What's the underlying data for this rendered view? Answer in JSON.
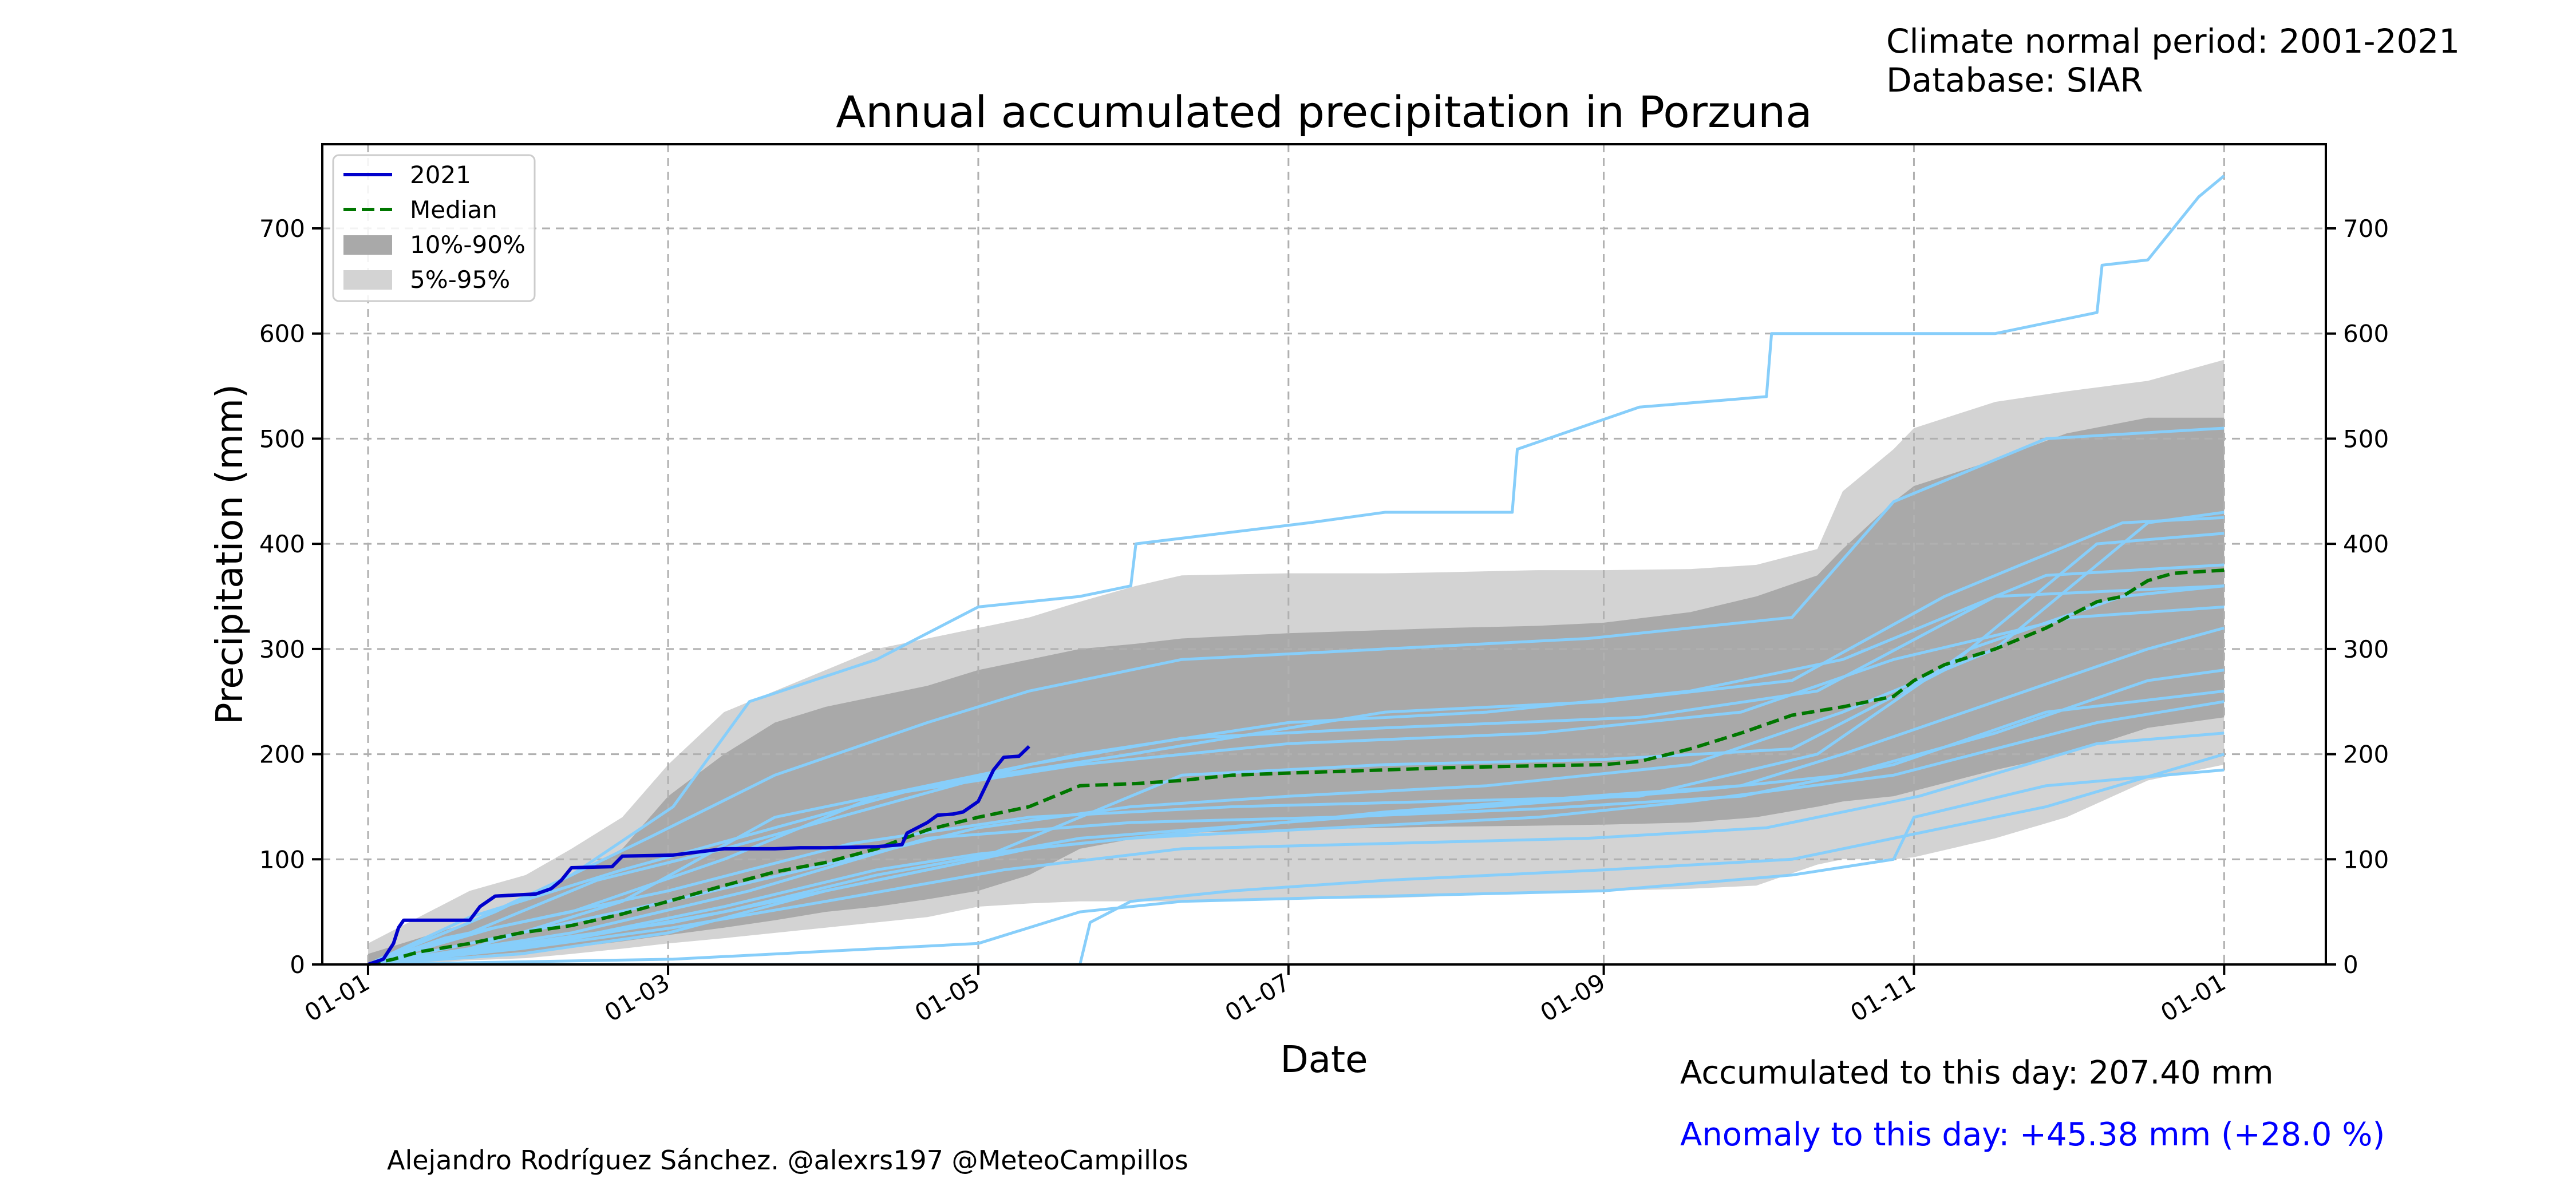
{
  "header": {
    "climate_period": "Climate normal period: 2001-2021",
    "database": "Database: SIAR"
  },
  "footer": {
    "accumulated": "Accumulated to this day: 207.40 mm",
    "anomaly": "Anomaly to this day: +45.38 mm (+28.0 %)",
    "anomaly_color": "#0000ff",
    "credit": "Alejandro Rodríguez Sánchez. @alexrs197 @MeteoCampillos"
  },
  "chart_data": {
    "type": "line",
    "title": "Annual accumulated precipitation in Porzuna",
    "xlabel": "Date",
    "ylabel": "Precipitation (mm)",
    "x_axis": "day of year",
    "xlim": [
      -9,
      385
    ],
    "ylim": [
      0,
      780
    ],
    "xticks": [
      {
        "day": 0,
        "label": "01-01"
      },
      {
        "day": 59,
        "label": "01-03"
      },
      {
        "day": 120,
        "label": "01-05"
      },
      {
        "day": 181,
        "label": "01-07"
      },
      {
        "day": 243,
        "label": "01-09"
      },
      {
        "day": 304,
        "label": "01-11"
      },
      {
        "day": 365,
        "label": "01-01"
      }
    ],
    "yticks": [
      0,
      100,
      200,
      300,
      400,
      500,
      600,
      700
    ],
    "grid": true,
    "legend_position": "top-left",
    "legend": [
      {
        "label": "2021",
        "kind": "line",
        "color": "#0000cc",
        "dash": "solid"
      },
      {
        "label": "Median",
        "kind": "line",
        "color": "#007700",
        "dash": "dashed"
      },
      {
        "label": "10%-90%",
        "kind": "patch",
        "color": "#a9a9a9"
      },
      {
        "label": "5%-95%",
        "kind": "patch",
        "color": "#d3d3d3"
      }
    ],
    "colors": {
      "year_line": "#0000cc",
      "median": "#007700",
      "band_10_90": "#a9a9a9",
      "band_5_95": "#d3d3d3",
      "past_years": "#87cefa"
    },
    "band_5_95": {
      "x": [
        0,
        10,
        20,
        31,
        40,
        50,
        59,
        70,
        80,
        90,
        100,
        110,
        120,
        130,
        140,
        151,
        160,
        181,
        200,
        212,
        230,
        243,
        260,
        273,
        285,
        290,
        300,
        304,
        320,
        334,
        350,
        365
      ],
      "lower": [
        0,
        1,
        4,
        6,
        10,
        15,
        20,
        25,
        30,
        35,
        40,
        45,
        55,
        58,
        60,
        60,
        60,
        62,
        63,
        65,
        68,
        70,
        72,
        75,
        95,
        100,
        100,
        102,
        120,
        140,
        175,
        190
      ],
      "upper": [
        20,
        45,
        70,
        85,
        110,
        140,
        190,
        240,
        260,
        280,
        300,
        310,
        320,
        330,
        345,
        360,
        370,
        372,
        372,
        373,
        375,
        375,
        376,
        380,
        395,
        450,
        490,
        510,
        535,
        545,
        555,
        575
      ]
    },
    "band_10_90": {
      "x": [
        0,
        10,
        20,
        31,
        40,
        50,
        59,
        70,
        80,
        90,
        100,
        110,
        120,
        130,
        140,
        151,
        160,
        181,
        200,
        212,
        230,
        243,
        260,
        273,
        285,
        290,
        300,
        304,
        320,
        334,
        350,
        365
      ],
      "lower": [
        0,
        3,
        8,
        12,
        16,
        22,
        28,
        35,
        42,
        50,
        55,
        62,
        70,
        85,
        110,
        120,
        125,
        128,
        130,
        131,
        132,
        133,
        135,
        140,
        150,
        155,
        160,
        165,
        185,
        200,
        225,
        235
      ],
      "upper": [
        10,
        25,
        40,
        65,
        85,
        110,
        160,
        200,
        230,
        245,
        255,
        265,
        280,
        290,
        300,
        305,
        310,
        315,
        318,
        320,
        322,
        325,
        335,
        350,
        370,
        395,
        440,
        455,
        480,
        505,
        520,
        520
      ]
    },
    "series": [
      {
        "name": "2021",
        "x": [
          0,
          3,
          5,
          6,
          7,
          20,
          22,
          25,
          33,
          36,
          38,
          40,
          48,
          50,
          60,
          70,
          80,
          85,
          90,
          100,
          105,
          106,
          110,
          112,
          115,
          117,
          120,
          123,
          125,
          128,
          130
        ],
        "y": [
          0,
          5,
          20,
          35,
          42,
          42,
          55,
          65,
          67,
          72,
          80,
          92,
          93,
          103,
          104,
          110,
          110,
          111,
          111,
          112,
          114,
          125,
          135,
          142,
          143,
          145,
          155,
          185,
          197,
          198,
          207.4
        ]
      },
      {
        "name": "Median",
        "x": [
          0,
          5,
          10,
          20,
          30,
          40,
          50,
          59,
          70,
          80,
          90,
          100,
          110,
          120,
          130,
          140,
          151,
          160,
          170,
          181,
          200,
          212,
          230,
          243,
          250,
          260,
          270,
          280,
          290,
          300,
          304,
          310,
          320,
          330,
          340,
          345,
          350,
          355,
          365
        ],
        "y": [
          0,
          5,
          12,
          20,
          30,
          37,
          48,
          60,
          75,
          88,
          97,
          110,
          128,
          140,
          150,
          170,
          172,
          175,
          180,
          182,
          185,
          187,
          189,
          190,
          193,
          205,
          220,
          237,
          245,
          255,
          270,
          285,
          300,
          320,
          345,
          350,
          365,
          372,
          375
        ]
      }
    ],
    "past_years": [
      {
        "x": [
          0,
          20,
          40,
          60,
          75,
          100,
          120,
          140,
          150,
          151,
          185,
          200,
          225,
          226,
          250,
          275,
          276,
          320,
          340,
          341,
          350,
          360,
          365
        ],
        "y": [
          0,
          40,
          85,
          150,
          250,
          290,
          340,
          350,
          360,
          400,
          420,
          430,
          430,
          490,
          530,
          540,
          600,
          600,
          620,
          665,
          670,
          730,
          750
        ]
      },
      {
        "x": [
          0,
          60,
          120,
          140,
          160,
          200,
          243,
          280,
          300,
          304,
          330,
          365
        ],
        "y": [
          0,
          5,
          20,
          50,
          60,
          65,
          70,
          85,
          100,
          140,
          170,
          185
        ]
      },
      {
        "x": [
          0,
          140,
          142,
          150,
          170,
          200,
          243,
          280,
          300,
          330,
          365
        ],
        "y": [
          0,
          0,
          40,
          60,
          70,
          80,
          90,
          100,
          120,
          150,
          200
        ]
      },
      {
        "x": [
          0,
          30,
          59,
          90,
          120,
          150,
          181,
          220,
          260,
          290,
          320,
          350,
          365
        ],
        "y": [
          0,
          30,
          60,
          95,
          130,
          150,
          160,
          170,
          190,
          240,
          300,
          420,
          430
        ]
      },
      {
        "x": [
          0,
          25,
          55,
          80,
          110,
          130,
          160,
          200,
          240,
          280,
          300,
          330,
          365
        ],
        "y": [
          0,
          50,
          120,
          180,
          230,
          260,
          290,
          300,
          310,
          330,
          440,
          500,
          510
        ]
      },
      {
        "x": [
          0,
          30,
          60,
          100,
          130,
          170,
          200,
          240,
          270,
          290,
          320,
          350,
          365
        ],
        "y": [
          0,
          20,
          40,
          80,
          110,
          130,
          145,
          160,
          170,
          200,
          250,
          300,
          320
        ]
      },
      {
        "x": [
          0,
          20,
          50,
          80,
          110,
          140,
          181,
          220,
          260,
          290,
          330,
          365
        ],
        "y": [
          0,
          15,
          60,
          140,
          170,
          200,
          230,
          240,
          260,
          290,
          370,
          380
        ]
      },
      {
        "x": [
          0,
          40,
          70,
          100,
          120,
          150,
          190,
          230,
          260,
          300,
          340,
          365
        ],
        "y": [
          0,
          25,
          55,
          90,
          105,
          120,
          130,
          140,
          155,
          180,
          230,
          250
        ]
      },
      {
        "x": [
          0,
          30,
          59,
          90,
          120,
          160,
          200,
          243,
          280,
          310,
          340,
          365
        ],
        "y": [
          0,
          10,
          30,
          70,
          100,
          180,
          190,
          195,
          205,
          280,
          400,
          410
        ]
      },
      {
        "x": [
          0,
          20,
          45,
          70,
          100,
          130,
          160,
          200,
          250,
          285,
          320,
          365
        ],
        "y": [
          0,
          30,
          80,
          110,
          150,
          190,
          215,
          225,
          235,
          260,
          350,
          360
        ]
      },
      {
        "x": [
          0,
          35,
          70,
          100,
          140,
          180,
          220,
          260,
          290,
          320,
          350,
          365
        ],
        "y": [
          0,
          20,
          50,
          85,
          120,
          135,
          150,
          165,
          180,
          220,
          270,
          280
        ]
      },
      {
        "x": [
          0,
          25,
          59,
          95,
          130,
          170,
          210,
          250,
          285,
          315,
          345,
          365
        ],
        "y": [
          0,
          35,
          70,
          115,
          140,
          150,
          155,
          160,
          200,
          300,
          350,
          360
        ]
      },
      {
        "x": [
          0,
          15,
          40,
          70,
          100,
          140,
          181,
          230,
          270,
          300,
          335,
          365
        ],
        "y": [
          0,
          25,
          50,
          100,
          160,
          190,
          210,
          220,
          240,
          290,
          330,
          340
        ]
      },
      {
        "x": [
          0,
          30,
          60,
          90,
          125,
          160,
          200,
          240,
          275,
          305,
          340,
          365
        ],
        "y": [
          0,
          15,
          35,
          60,
          90,
          110,
          115,
          120,
          130,
          160,
          210,
          220
        ]
      },
      {
        "x": [
          0,
          20,
          50,
          80,
          110,
          150,
          200,
          243,
          280,
          310,
          345,
          365
        ],
        "y": [
          0,
          45,
          90,
          130,
          170,
          200,
          240,
          250,
          270,
          350,
          420,
          425
        ]
      },
      {
        "x": [
          0,
          40,
          75,
          110,
          150,
          190,
          230,
          270,
          300,
          330,
          365
        ],
        "y": [
          0,
          30,
          70,
          120,
          135,
          140,
          148,
          160,
          190,
          240,
          260
        ]
      }
    ]
  }
}
